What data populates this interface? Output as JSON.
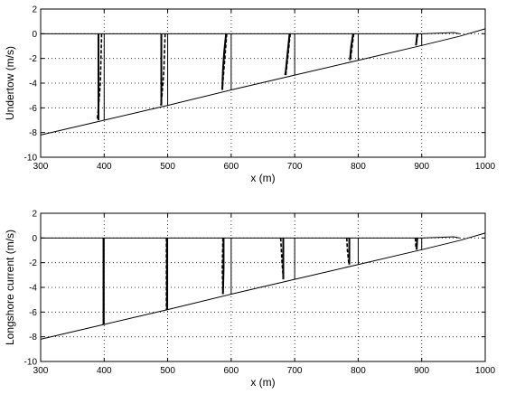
{
  "chart_data": [
    {
      "type": "line",
      "xlabel": "x (m)",
      "ylabel": "Undertow (m/s)",
      "xlim": [
        300,
        1000
      ],
      "ylim": [
        -10,
        2
      ],
      "xticks": [
        "300",
        "400",
        "500",
        "600",
        "700",
        "800",
        "900",
        "1000"
      ],
      "yticks": [
        "2",
        "0",
        "-2",
        "-4",
        "-6",
        "-8",
        "-10"
      ],
      "grid": true,
      "series": [
        {
          "style": "solid",
          "x": [
            300,
            400,
            500,
            600,
            700,
            800,
            900,
            960,
            1000
          ],
          "y": [
            -8.2,
            -7.0,
            -5.8,
            -4.55,
            -3.35,
            -2.15,
            -0.95,
            -0.2,
            0.4
          ]
        },
        {
          "style": "solid",
          "x": [
            300,
            900,
            930,
            950,
            960
          ],
          "y": [
            0,
            0,
            0.05,
            0.1,
            0
          ]
        }
      ],
      "profiles": [
        {
          "x0": 400,
          "bed": -7.0,
          "solid": [
            [
              391,
              0
            ],
            [
              391,
              -7.0
            ]
          ],
          "dashed": [
            [
              396,
              0
            ],
            [
              394,
              -4.0
            ],
            [
              391,
              -6.0
            ],
            [
              389,
              -7.0
            ]
          ]
        },
        {
          "x0": 500,
          "bed": -5.8,
          "solid": [
            [
              490,
              0
            ],
            [
              490,
              -5.8
            ]
          ],
          "dashed": [
            [
              496,
              0
            ],
            [
              494,
              -3.0
            ],
            [
              491,
              -5.0
            ],
            [
              489,
              -5.8
            ]
          ]
        },
        {
          "x0": 600,
          "bed": -4.55,
          "solid": [
            [
              592,
              0
            ],
            [
              589,
              -1.5
            ],
            [
              587,
              -3.0
            ],
            [
              586,
              -4.55
            ]
          ],
          "dashed": [
            [
              593,
              0
            ],
            [
              590,
              -2.0
            ],
            [
              586,
              -4.5
            ]
          ]
        },
        {
          "x0": 700,
          "bed": -3.35,
          "solid": [
            [
              692,
              0
            ],
            [
              689,
              -1.5
            ],
            [
              686,
              -3.0
            ],
            [
              685,
              -3.35
            ]
          ],
          "dashed": [
            [
              693,
              0
            ],
            [
              689,
              -2.0
            ],
            [
              686,
              -3.35
            ]
          ]
        },
        {
          "x0": 800,
          "bed": -2.15,
          "solid": [
            [
              792,
              0
            ],
            [
              789,
              -1.0
            ],
            [
              787,
              -2.15
            ]
          ],
          "dashed": [
            [
              793,
              0
            ],
            [
              788,
              -2.0
            ]
          ]
        },
        {
          "x0": 900,
          "bed": -0.95,
          "solid": [
            [
              893,
              0
            ],
            [
              891,
              -0.95
            ]
          ],
          "dashed": [
            [
              894,
              0
            ],
            [
              891,
              -0.9
            ]
          ]
        }
      ]
    },
    {
      "type": "line",
      "xlabel": "x (m)",
      "ylabel": "Longshore current (m/s)",
      "xlim": [
        300,
        1000
      ],
      "ylim": [
        -10,
        2
      ],
      "xticks": [
        "300",
        "400",
        "500",
        "600",
        "700",
        "800",
        "900",
        "1000"
      ],
      "yticks": [
        "2",
        "0",
        "-2",
        "-4",
        "-6",
        "-8",
        "-10"
      ],
      "grid": true,
      "series": [
        {
          "style": "solid",
          "x": [
            300,
            400,
            500,
            600,
            700,
            800,
            900,
            960,
            1000
          ],
          "y": [
            -8.2,
            -7.0,
            -5.8,
            -4.55,
            -3.35,
            -2.15,
            -0.95,
            -0.2,
            0.4
          ]
        },
        {
          "style": "solid",
          "x": [
            300,
            900,
            930,
            950,
            960
          ],
          "y": [
            0,
            0,
            0.05,
            0.1,
            0
          ]
        }
      ],
      "profiles": [
        {
          "x0": 400,
          "bed": -7.0,
          "solid": [
            [
              399,
              0
            ],
            [
              399,
              -7.0
            ]
          ],
          "dashed": [
            [
              399,
              0
            ],
            [
              399,
              -7.0
            ]
          ]
        },
        {
          "x0": 500,
          "bed": -5.8,
          "solid": [
            [
              499,
              0
            ],
            [
              499,
              -5.8
            ]
          ],
          "dashed": [
            [
              498,
              0
            ],
            [
              498,
              -5.8
            ]
          ]
        },
        {
          "x0": 600,
          "bed": -4.55,
          "solid": [
            [
              588,
              0
            ],
            [
              588,
              -2.5
            ],
            [
              587,
              -4.55
            ]
          ],
          "dashed": [
            [
              587,
              0
            ],
            [
              586,
              -2.5
            ],
            [
              587,
              -4.5
            ]
          ]
        },
        {
          "x0": 700,
          "bed": -3.35,
          "solid": [
            [
              682,
              0
            ],
            [
              682,
              -3.35
            ]
          ],
          "dashed": [
            [
              678,
              0
            ],
            [
              680,
              -2.0
            ],
            [
              682,
              -3.2
            ]
          ]
        },
        {
          "x0": 800,
          "bed": -2.15,
          "solid": [
            [
              786,
              0
            ],
            [
              786,
              -2.15
            ]
          ],
          "dashed": [
            [
              782,
              0
            ],
            [
              783,
              -1.0
            ],
            [
              785,
              -2.0
            ]
          ]
        },
        {
          "x0": 900,
          "bed": -0.95,
          "solid": [
            [
              893,
              0
            ],
            [
              892,
              -0.95
            ]
          ],
          "dashed": [
            [
              890,
              0
            ],
            [
              891,
              -0.9
            ]
          ]
        }
      ]
    }
  ]
}
